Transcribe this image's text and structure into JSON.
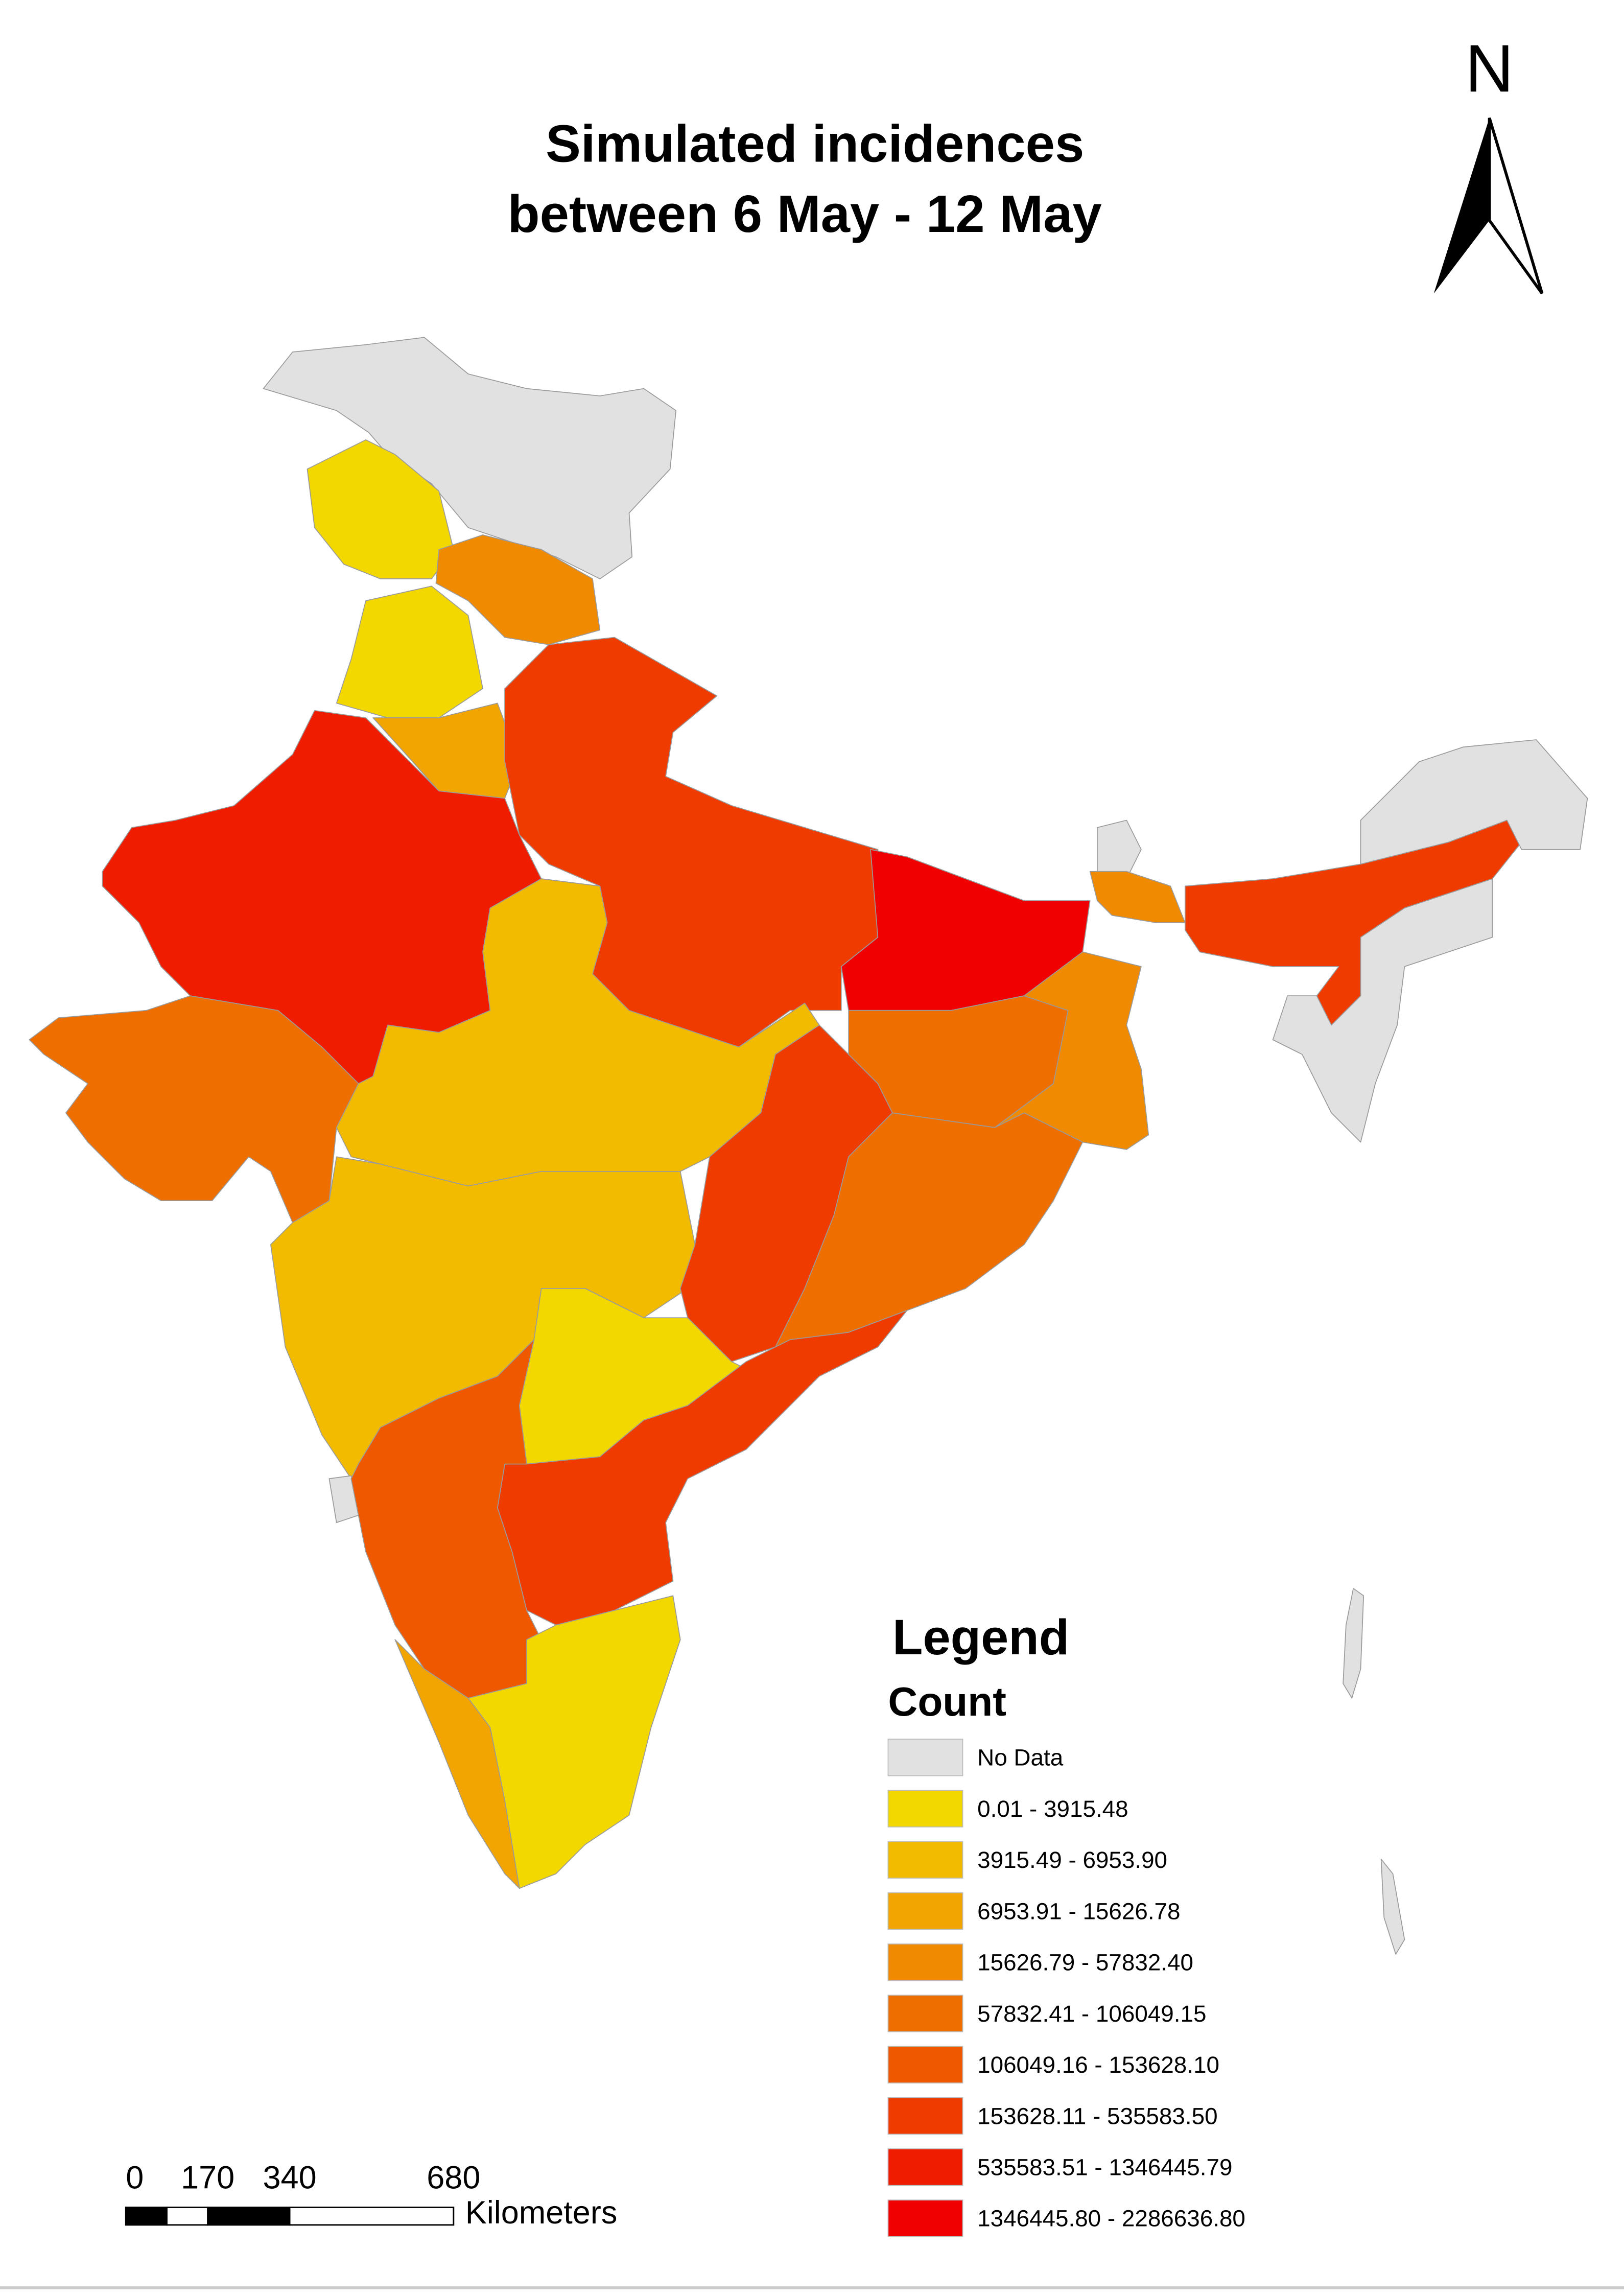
{
  "title": [
    "Simulated incidences",
    "between 6 May - 12 May"
  ],
  "north": "N",
  "legend": {
    "title": "Legend",
    "subtitle": "Count",
    "entries": [
      {
        "label": "No Data",
        "color": "#e1e1e1"
      },
      {
        "label": "0.01 - 3915.48",
        "color": "#f3d800"
      },
      {
        "label": "3915.49 - 6953.90",
        "color": "#f3bb00"
      },
      {
        "label": "6953.91 - 15626.78",
        "color": "#f2a400"
      },
      {
        "label": "15626.79 - 57832.40",
        "color": "#f08a00"
      },
      {
        "label": "57832.41 - 106049.15",
        "color": "#ef6e00"
      },
      {
        "label": "106049.16 - 153628.10",
        "color": "#f05800"
      },
      {
        "label": "153628.11 - 535583.50",
        "color": "#f03b00"
      },
      {
        "label": "535583.51 - 1346445.79",
        "color": "#f01c00"
      },
      {
        "label": "1346445.80 - 2286636.80",
        "color": "#f00000"
      }
    ]
  },
  "scale_bar": {
    "ticks": [
      0,
      170,
      340,
      680
    ],
    "unit": "Kilometers"
  }
}
